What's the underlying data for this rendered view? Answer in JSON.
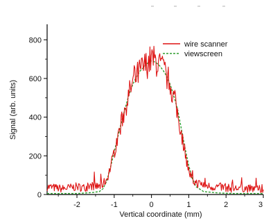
{
  "chart_data": {
    "type": "line",
    "xlabel": "Vertical coordinate (mm)",
    "ylabel": "Signal (arb. units)",
    "xlim": [
      -2.8,
      3.0
    ],
    "ylim": [
      0,
      880
    ],
    "xticks": [
      -2,
      -1,
      0,
      1,
      2,
      3
    ],
    "yticks": [
      0,
      200,
      400,
      600,
      800
    ],
    "xtick_labels": [
      "-2",
      "-1",
      "0",
      "1",
      "2",
      "3"
    ],
    "ytick_labels": [
      "0",
      "200",
      "400",
      "600",
      "800"
    ],
    "legend_position": "top-right",
    "grid": false,
    "series": [
      {
        "name": "wire scanner",
        "style": "solid",
        "color": "#dd1111",
        "x": [
          -2.8,
          -2.6,
          -2.4,
          -2.2,
          -2.0,
          -1.8,
          -1.6,
          -1.4,
          -1.3,
          -1.2,
          -1.1,
          -1.0,
          -0.9,
          -0.8,
          -0.7,
          -0.6,
          -0.5,
          -0.4,
          -0.3,
          -0.2,
          -0.1,
          0.0,
          0.1,
          0.2,
          0.3,
          0.4,
          0.5,
          0.6,
          0.7,
          0.8,
          0.9,
          1.0,
          1.1,
          1.2,
          1.4,
          1.6,
          1.8,
          2.0,
          2.2,
          2.4,
          2.6,
          2.8,
          3.0
        ],
        "values": [
          40,
          35,
          30,
          35,
          40,
          35,
          45,
          40,
          55,
          80,
          140,
          220,
          300,
          380,
          450,
          520,
          580,
          610,
          640,
          660,
          680,
          700,
          690,
          670,
          650,
          620,
          570,
          500,
          420,
          320,
          220,
          120,
          70,
          60,
          50,
          40,
          40,
          35,
          30,
          35,
          30,
          30,
          25
        ]
      },
      {
        "name": "viewscreen",
        "style": "dashed",
        "color": "#2e9e2e",
        "x": [
          -2.8,
          -2.4,
          -2.0,
          -1.6,
          -1.4,
          -1.3,
          -1.2,
          -1.1,
          -1.0,
          -0.9,
          -0.8,
          -0.7,
          -0.6,
          -0.5,
          -0.4,
          -0.3,
          -0.2,
          -0.1,
          0.0,
          0.1,
          0.2,
          0.3,
          0.4,
          0.5,
          0.6,
          0.7,
          0.8,
          0.9,
          1.0,
          1.1,
          1.2,
          1.4,
          1.8,
          2.2,
          2.6,
          3.0
        ],
        "values": [
          5,
          5,
          5,
          10,
          15,
          30,
          70,
          140,
          220,
          300,
          380,
          450,
          520,
          570,
          610,
          640,
          660,
          680,
          690,
          685,
          670,
          645,
          615,
          570,
          510,
          440,
          340,
          240,
          150,
          80,
          40,
          15,
          8,
          5,
          5,
          5
        ]
      }
    ]
  }
}
